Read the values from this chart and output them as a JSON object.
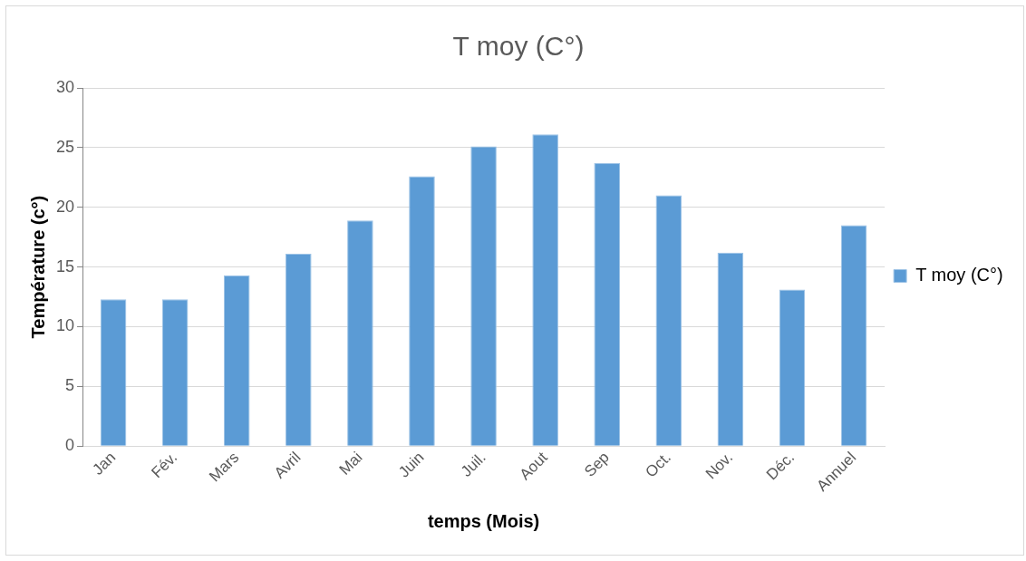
{
  "chart_data": {
    "type": "bar",
    "title": "T moy (C°)",
    "xlabel": "temps (Mois)",
    "ylabel": "Température (c°)",
    "categories": [
      "Jan",
      "Fév.",
      "Mars",
      "Avril",
      "Mai",
      "Juin",
      "Juil.",
      "Aout",
      "Sep",
      "Oct.",
      "Nov.",
      "Déc.",
      "Annuel"
    ],
    "series": [
      {
        "name": "T moy (C°)",
        "color": "#5b9bd5",
        "values": [
          12.3,
          12.3,
          14.3,
          16.1,
          18.9,
          22.6,
          25.1,
          26.1,
          23.7,
          21.0,
          16.2,
          13.1,
          18.5
        ]
      }
    ],
    "ylim": [
      0,
      30
    ],
    "yticks": [
      0,
      5,
      10,
      15,
      20,
      25,
      30
    ],
    "grid": "y",
    "legend": "right"
  }
}
